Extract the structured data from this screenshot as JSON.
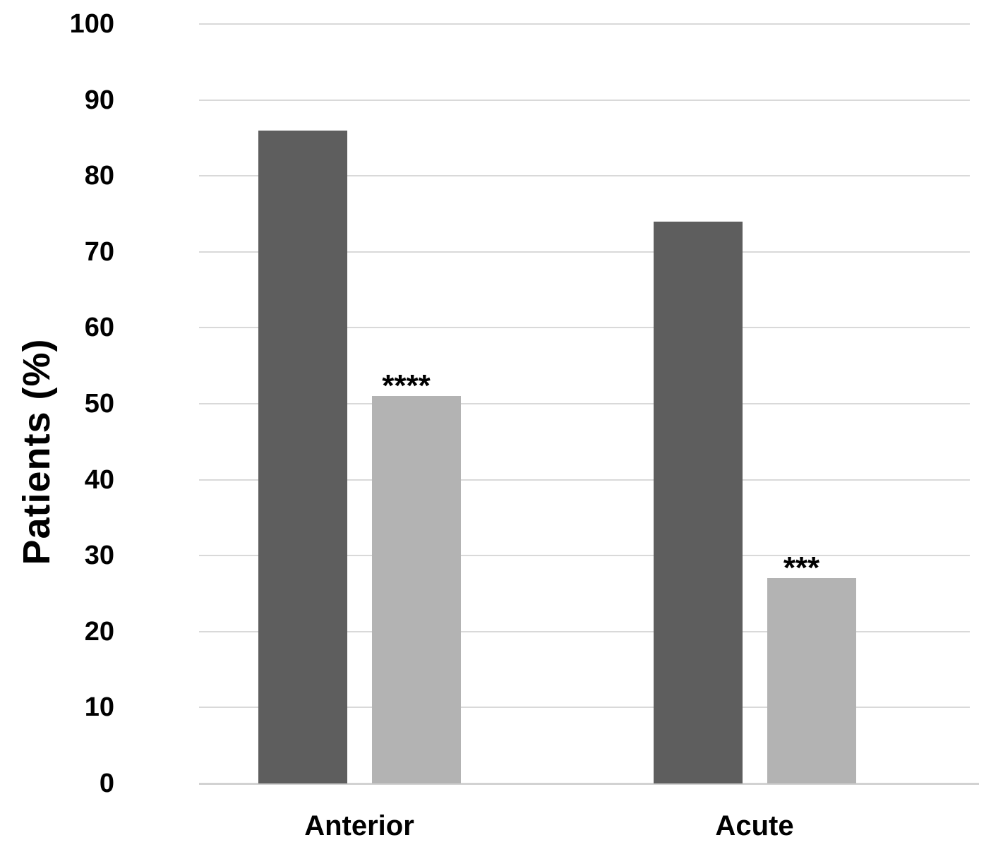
{
  "chart_data": {
    "type": "bar",
    "title": "",
    "ylabel": "Patients (%)",
    "xlabel": "",
    "ylim": [
      0,
      100
    ],
    "yticks": [
      0,
      10,
      20,
      30,
      40,
      50,
      60,
      70,
      80,
      90,
      100
    ],
    "categories": [
      "Anterior",
      "Acute"
    ],
    "series": [
      {
        "name": "dark-gray-series",
        "color": "#5e5e5e",
        "values": [
          86,
          74
        ],
        "annotations": [
          "",
          ""
        ]
      },
      {
        "name": "light-gray-series",
        "color": "#b3b3b3",
        "values": [
          51,
          27
        ],
        "annotations": [
          "****",
          "***"
        ]
      }
    ],
    "grid": true,
    "legend_position": "none",
    "background_color": "#ffffff",
    "gridline_color": "#d9d9d9",
    "axis_line_color": "#d2d2d2",
    "text_color": "#000000"
  }
}
